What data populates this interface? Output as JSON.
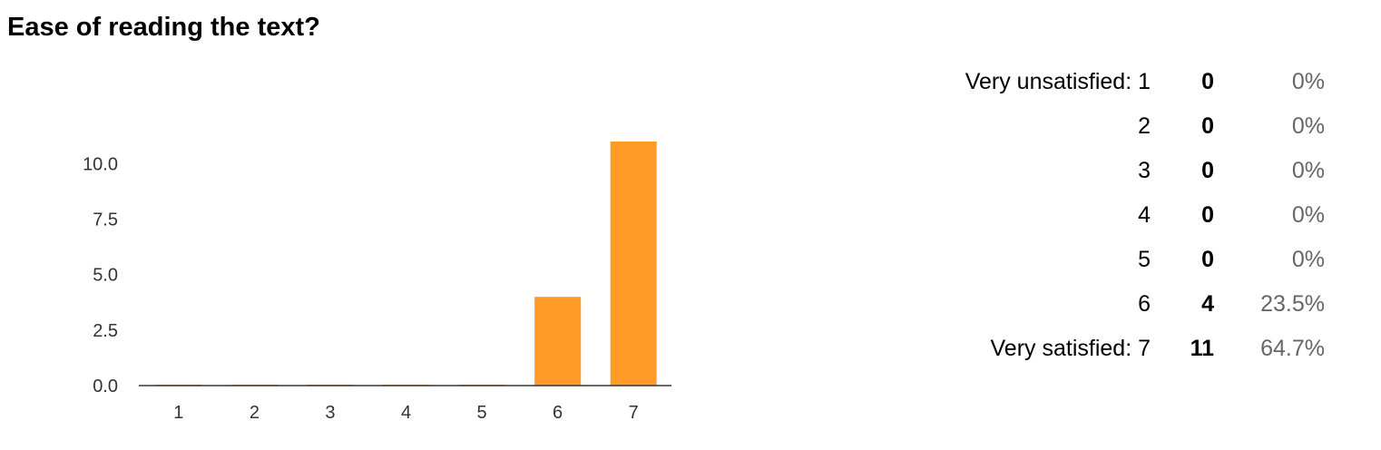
{
  "title": "Ease of reading the text?",
  "summary": {
    "rows": [
      {
        "label": "Very unsatisfied: 1",
        "count": "0",
        "percent": "0%"
      },
      {
        "label": "2",
        "count": "0",
        "percent": "0%"
      },
      {
        "label": "3",
        "count": "0",
        "percent": "0%"
      },
      {
        "label": "4",
        "count": "0",
        "percent": "0%"
      },
      {
        "label": "5",
        "count": "0",
        "percent": "0%"
      },
      {
        "label": "6",
        "count": "4",
        "percent": "23.5%"
      },
      {
        "label": "Very satisfied: 7",
        "count": "11",
        "percent": "64.7%"
      }
    ]
  },
  "chart_data": {
    "type": "bar",
    "categories": [
      "1",
      "2",
      "3",
      "4",
      "5",
      "6",
      "7"
    ],
    "values": [
      0,
      0,
      0,
      0,
      0,
      4,
      11
    ],
    "yticks": [
      "0.0",
      "2.5",
      "5.0",
      "7.5",
      "10.0"
    ],
    "ylim": [
      0,
      11
    ],
    "bar_color": "#ff9a26",
    "axis_color": "#333333",
    "grid": false,
    "legend": "none"
  }
}
